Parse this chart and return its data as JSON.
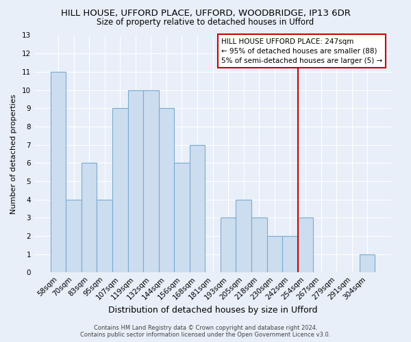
{
  "title": "HILL HOUSE, UFFORD PLACE, UFFORD, WOODBRIDGE, IP13 6DR",
  "subtitle": "Size of property relative to detached houses in Ufford",
  "xlabel": "Distribution of detached houses by size in Ufford",
  "ylabel": "Number of detached properties",
  "categories": [
    "58sqm",
    "70sqm",
    "83sqm",
    "95sqm",
    "107sqm",
    "119sqm",
    "132sqm",
    "144sqm",
    "156sqm",
    "168sqm",
    "181sqm",
    "193sqm",
    "205sqm",
    "218sqm",
    "230sqm",
    "242sqm",
    "254sqm",
    "267sqm",
    "279sqm",
    "291sqm",
    "304sqm"
  ],
  "values": [
    11,
    4,
    6,
    4,
    9,
    10,
    10,
    9,
    6,
    7,
    0,
    3,
    4,
    3,
    2,
    2,
    3,
    0,
    0,
    0,
    1
  ],
  "bar_color": "#ccddf0",
  "bar_edge_color": "#7aaacf",
  "background_color": "#e8eff8",
  "grid_color": "#ffffff",
  "vline_x_index": 15,
  "vline_color": "#cc0000",
  "annotation_text": "HILL HOUSE UFFORD PLACE: 247sqm\n← 95% of detached houses are smaller (88)\n5% of semi-detached houses are larger (5) →",
  "annotation_box_color": "#ffffff",
  "annotation_box_edge_color": "#cc0000",
  "ylim": [
    0,
    13
  ],
  "yticks": [
    0,
    1,
    2,
    3,
    4,
    5,
    6,
    7,
    8,
    9,
    10,
    11,
    12,
    13
  ],
  "footer": "Contains HM Land Registry data © Crown copyright and database right 2024.\nContains public sector information licensed under the Open Government Licence v3.0.",
  "title_fontsize": 9.5,
  "subtitle_fontsize": 8.5,
  "xlabel_fontsize": 9,
  "ylabel_fontsize": 8,
  "tick_fontsize": 7.5,
  "annotation_fontsize": 7.5,
  "footer_fontsize": 6
}
